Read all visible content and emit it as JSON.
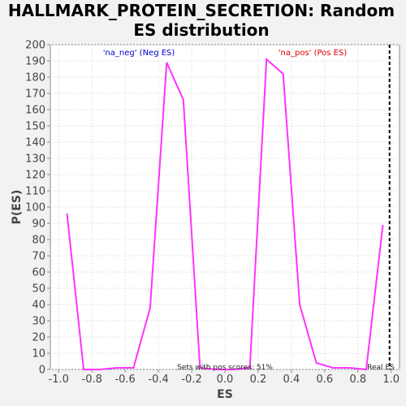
{
  "chart_data": {
    "type": "line",
    "title_lines": [
      "HALLMARK_PROTEIN_SECRETION: Random",
      "ES distribution"
    ],
    "xlabel": "ES",
    "ylabel": "P(ES)",
    "xlim": [
      -1.05,
      1.05
    ],
    "ylim": [
      0,
      200
    ],
    "xticks": [
      -1.0,
      -0.8,
      -0.6,
      -0.4,
      -0.2,
      0.0,
      0.2,
      0.4,
      0.6,
      0.8,
      1.0
    ],
    "xtick_labels": [
      "-1.0",
      "-0.8",
      "-0.6",
      "-0.4",
      "-0.2",
      "0.0",
      "0.2",
      "0.4",
      "0.6",
      "0.8",
      "1.0"
    ],
    "yticks": [
      0,
      10,
      20,
      30,
      40,
      50,
      60,
      70,
      80,
      90,
      100,
      110,
      120,
      130,
      140,
      150,
      160,
      170,
      180,
      190,
      200
    ],
    "grid": true,
    "series": [
      {
        "color": "#ff33ff",
        "x": [
          -0.95,
          -0.85,
          -0.75,
          -0.65,
          -0.55,
          -0.45,
          -0.35,
          -0.25,
          -0.15,
          -0.05,
          0.05,
          0.15,
          0.25,
          0.35,
          0.45,
          0.55,
          0.65,
          0.75,
          0.85,
          0.95
        ],
        "y": [
          96,
          0,
          0,
          1,
          1,
          38,
          189,
          166,
          1,
          0,
          0,
          1,
          191,
          182,
          40,
          4,
          1,
          1,
          0,
          89
        ]
      }
    ],
    "real_es": 0.99,
    "legend_neg": "'na_neg' (Neg ES)",
    "legend_pos": "'na_pos' (Pos ES)",
    "pos_scores_text": "Sets with pos scores: 51%",
    "real_es_label": "Real ES"
  }
}
